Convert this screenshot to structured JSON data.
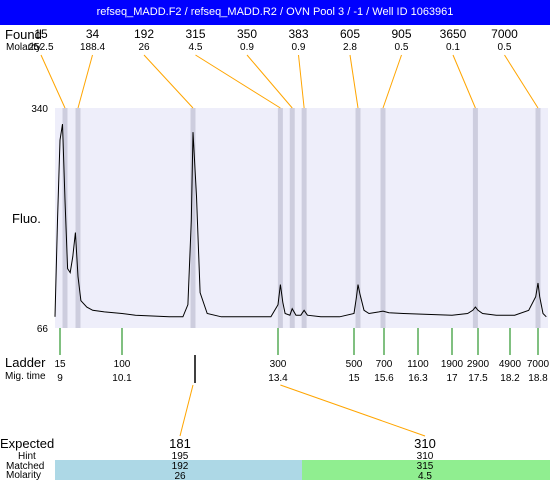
{
  "title": "refseq_MADD.F2 / refseq_MADD.R2 / OVN Pool 3 / -1 / Well ID 1063961",
  "labels": {
    "found": "Found",
    "molarity": "Molarity",
    "fluo": "Fluo.",
    "ladder": "Ladder",
    "mig_time": "Mig. time",
    "expected": "Expected",
    "hint": "Hint",
    "matched": "Matched",
    "molarity_bottom": "Molarity"
  },
  "colors": {
    "title_bg": "#0000ff",
    "plot_bg": "#eeeefa",
    "peak_band": "#cdcdde",
    "found_line": "#ffa500",
    "ladder_tick": "#008000",
    "matched_a": "#add8e6",
    "matched_b": "#90ee90"
  },
  "chart_data": {
    "type": "line",
    "ylabel": "Fluo.",
    "yticks": [
      "340",
      "66"
    ],
    "ylim": [
      66,
      340
    ],
    "found_peaks": [
      {
        "size": "15",
        "molarity": "252.5",
        "time": 9.1
      },
      {
        "size": "34",
        "molarity": "188.4",
        "time": 9.35
      },
      {
        "size": "192",
        "molarity": "26",
        "time": 12.2
      },
      {
        "size": "315",
        "molarity": "4.5",
        "time": 13.45
      },
      {
        "size": "350",
        "molarity": "0.9",
        "time": 13.7
      },
      {
        "size": "383",
        "molarity": "0.9",
        "time": 13.95
      },
      {
        "size": "605",
        "molarity": "2.8",
        "time": 15.08
      },
      {
        "size": "905",
        "molarity": "0.5",
        "time": 15.58
      },
      {
        "size": "3650",
        "molarity": "0.1",
        "time": 17.45
      },
      {
        "size": "7000",
        "molarity": "0.5",
        "time": 18.8
      }
    ],
    "ladder": [
      {
        "size": "15",
        "time": "9",
        "t": 9.0
      },
      {
        "size": "100",
        "time": "10.1",
        "t": 10.1
      },
      {
        "size": "300",
        "time": "13.4",
        "t": 13.4
      },
      {
        "size": "500",
        "time": "15",
        "t": 15.0
      },
      {
        "size": "700",
        "time": "15.6",
        "t": 15.6
      },
      {
        "size": "1100",
        "time": "16.3",
        "t": 16.3
      },
      {
        "size": "1900",
        "time": "17",
        "t": 17.0
      },
      {
        "size": "2900",
        "time": "17.5",
        "t": 17.5
      },
      {
        "size": "4900",
        "time": "18.2",
        "t": 18.2
      },
      {
        "size": "7000",
        "time": "18.8",
        "t": 18.8
      }
    ],
    "trace": [
      [
        8.9,
        80
      ],
      [
        8.95,
        200
      ],
      [
        9.0,
        300
      ],
      [
        9.05,
        320
      ],
      [
        9.1,
        225
      ],
      [
        9.15,
        140
      ],
      [
        9.2,
        135
      ],
      [
        9.25,
        155
      ],
      [
        9.3,
        185
      ],
      [
        9.35,
        130
      ],
      [
        9.4,
        100
      ],
      [
        9.5,
        92
      ],
      [
        9.6,
        88
      ],
      [
        9.8,
        86
      ],
      [
        10.1,
        84
      ],
      [
        10.5,
        82
      ],
      [
        11.0,
        81
      ],
      [
        11.5,
        80
      ],
      [
        11.9,
        80
      ],
      [
        12.05,
        95
      ],
      [
        12.15,
        200
      ],
      [
        12.2,
        310
      ],
      [
        12.25,
        230
      ],
      [
        12.3,
        110
      ],
      [
        12.4,
        84
      ],
      [
        12.6,
        80
      ],
      [
        13.0,
        80
      ],
      [
        13.3,
        80
      ],
      [
        13.4,
        95
      ],
      [
        13.45,
        120
      ],
      [
        13.5,
        98
      ],
      [
        13.55,
        84
      ],
      [
        13.65,
        82
      ],
      [
        13.7,
        90
      ],
      [
        13.78,
        82
      ],
      [
        13.88,
        82
      ],
      [
        13.95,
        88
      ],
      [
        14.02,
        82
      ],
      [
        14.3,
        80
      ],
      [
        14.7,
        80
      ],
      [
        15.0,
        84
      ],
      [
        15.05,
        105
      ],
      [
        15.08,
        120
      ],
      [
        15.12,
        108
      ],
      [
        15.2,
        88
      ],
      [
        15.3,
        84
      ],
      [
        15.5,
        86
      ],
      [
        15.58,
        87
      ],
      [
        15.7,
        85
      ],
      [
        16.0,
        84
      ],
      [
        16.5,
        83
      ],
      [
        17.0,
        82
      ],
      [
        17.3,
        84
      ],
      [
        17.4,
        88
      ],
      [
        17.45,
        92
      ],
      [
        17.5,
        88
      ],
      [
        17.6,
        84
      ],
      [
        17.9,
        82
      ],
      [
        18.3,
        82
      ],
      [
        18.6,
        88
      ],
      [
        18.75,
        105
      ],
      [
        18.8,
        122
      ],
      [
        18.85,
        105
      ],
      [
        18.95,
        84
      ],
      [
        19.05,
        80
      ]
    ],
    "expected": [
      {
        "expected": "181",
        "hint": "195",
        "matched": "192",
        "molarity": "26",
        "peak_time": 12.2
      },
      {
        "expected": "310",
        "hint": "310",
        "matched": "315",
        "molarity": "4.5",
        "peak_time": 13.45
      }
    ]
  }
}
